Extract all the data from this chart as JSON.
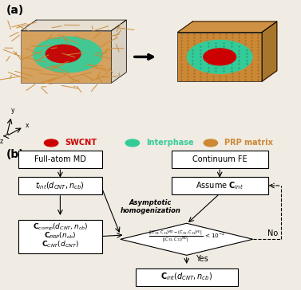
{
  "title_a": "(a)",
  "title_b": "(b)",
  "legend_swcnt": "SWCNT",
  "legend_interphase": "Interphase",
  "legend_prp": "PRP matrix",
  "color_swcnt": "#cc0000",
  "color_interphase": "#33cc99",
  "color_prp": "#cc8833",
  "background": "#f0ebe3",
  "font_size_legend": 7.0,
  "font_size_panel": 10,
  "font_size_box": 7,
  "font_size_formula": 5.2
}
